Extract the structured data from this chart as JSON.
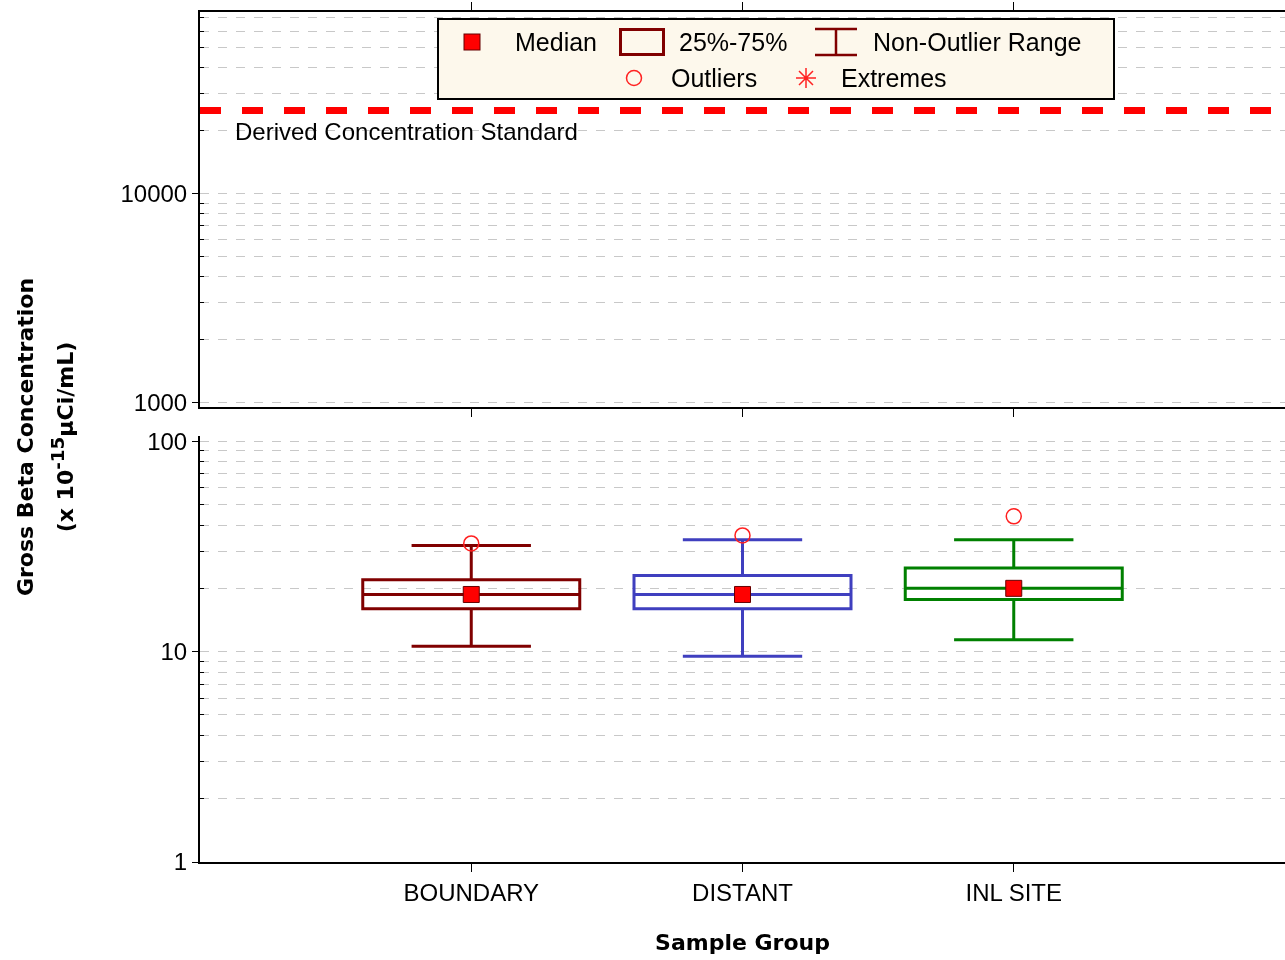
{
  "chart_data": [
    {
      "type": "box",
      "categories": [
        null,
        null,
        null
      ],
      "log": "y",
      "ylim": [
        950,
        74000
      ],
      "yticks": [
        1000,
        10000
      ],
      "tick_labels": "y",
      "grid": "y",
      "ref_lines": [
        {
          "axis": "y",
          "value": 25000,
          "label": "Derived Concentration Standard",
          "color": "#ff0000",
          "line_style": "dashed"
        }
      ],
      "annotations": [
        "25%-75%",
        "Non-Outlier Range",
        "Outliers",
        "Extremes"
      ]
    },
    {
      "type": "box",
      "categories": [
        "BOUNDARY",
        "DISTANT",
        "INL SITE"
      ],
      "xlabel": "Sample Group",
      "ylabel": "Gross Beta Concentration\n(x 10$^{-15}$µCi/mL)",
      "log": "y",
      "ylim": [
        1,
        106
      ],
      "yticks": [
        1,
        10,
        100
      ],
      "grid": "y",
      "colors": [
        "#800000",
        "#3f3fbf",
        "#008000"
      ],
      "boxes": [
        {
          "low": 10.6,
          "q1": 16,
          "median": 18.7,
          "q3": 22,
          "high": 32,
          "outliers": [
            32.7
          ]
        },
        {
          "low": 9.5,
          "q1": 16,
          "median": 18.7,
          "q3": 23,
          "high": 34,
          "outliers": [
            35.7
          ]
        },
        {
          "low": 11.4,
          "q1": 17.7,
          "median": 20,
          "q3": 25,
          "high": 34,
          "outliers": [
            44
          ]
        }
      ],
      "series": [
        {
          "type": "scatter",
          "name": "Median",
          "color": "#ff0000",
          "marker": "square",
          "values": [
            18.7,
            18.7,
            20
          ]
        }
      ]
    }
  ]
}
